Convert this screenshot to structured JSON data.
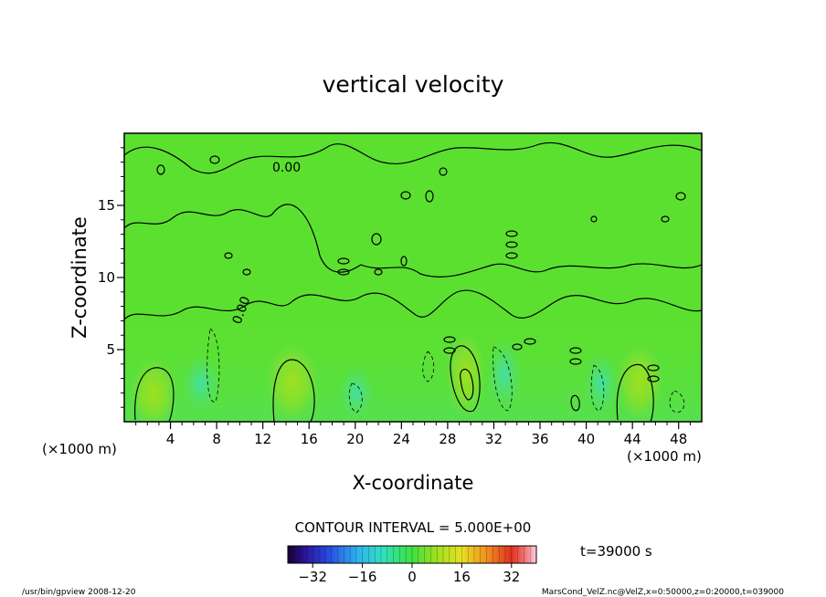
{
  "chart_data": {
    "type": "heatmap",
    "title": "vertical velocity",
    "xlabel": "X-coordinate",
    "ylabel": "Z-coordinate",
    "x_unit": "(×1000 m)",
    "y_unit": "(×1000 m)",
    "xlim": [
      0,
      50
    ],
    "ylim": [
      0,
      20
    ],
    "x_ticks": [
      4,
      8,
      12,
      16,
      20,
      24,
      28,
      32,
      36,
      40,
      44,
      48
    ],
    "y_ticks": [
      5,
      10,
      15
    ],
    "contour_interval_text": "CONTOUR INTERVAL = 5.000E+00",
    "contour_labels": [
      "0.00",
      "0.00"
    ],
    "time_text": "t=39000 s",
    "colorbar": {
      "range": [
        -40,
        40
      ],
      "ticks": [
        "−32",
        "−16",
        "0",
        "16",
        "32"
      ],
      "tick_values": [
        -32,
        -16,
        0,
        16,
        32
      ]
    }
  },
  "footer": {
    "left": "/usr/bin/gpview  2008-12-20",
    "right": "MarsCond_VelZ.nc@VelZ,x=0:50000,z=0:20000,t=039000"
  }
}
